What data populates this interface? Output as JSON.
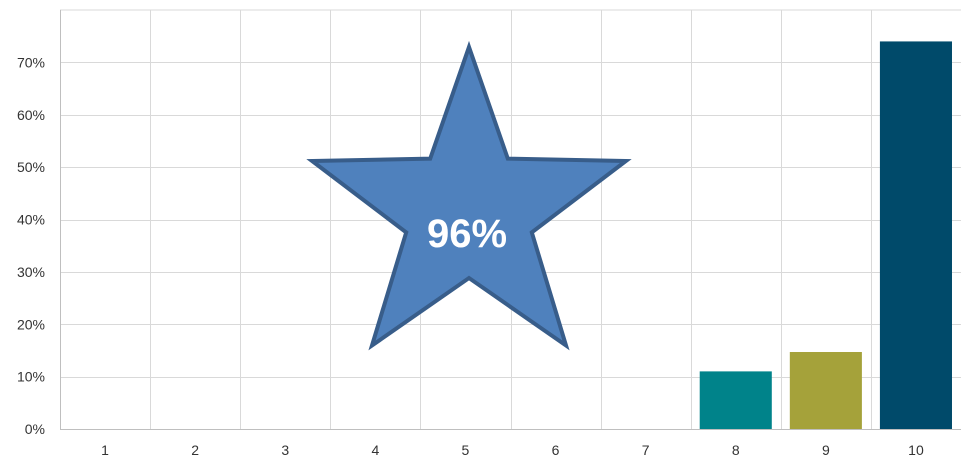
{
  "chart_data": {
    "type": "bar",
    "categories": [
      "1",
      "2",
      "3",
      "4",
      "5",
      "6",
      "7",
      "8",
      "9",
      "10"
    ],
    "values": [
      0,
      0,
      0,
      0,
      0,
      0,
      0,
      11,
      14.7,
      74
    ],
    "bar_colors": [
      "#4e81bd",
      "#4e81bd",
      "#4e81bd",
      "#4e81bd",
      "#4e81bd",
      "#4e81bd",
      "#4e81bd",
      "#00838a",
      "#a5a23a",
      "#004a6a"
    ],
    "y_ticks": [
      "0%",
      "10%",
      "20%",
      "30%",
      "40%",
      "50%",
      "60%",
      "70%"
    ],
    "ylim": [
      0,
      80
    ],
    "grid": true,
    "title": "",
    "xlabel": "",
    "ylabel": ""
  },
  "callout": {
    "text": "96%",
    "shape": "star-icon",
    "fill": "#4f81bd",
    "stroke": "#385d8a"
  }
}
